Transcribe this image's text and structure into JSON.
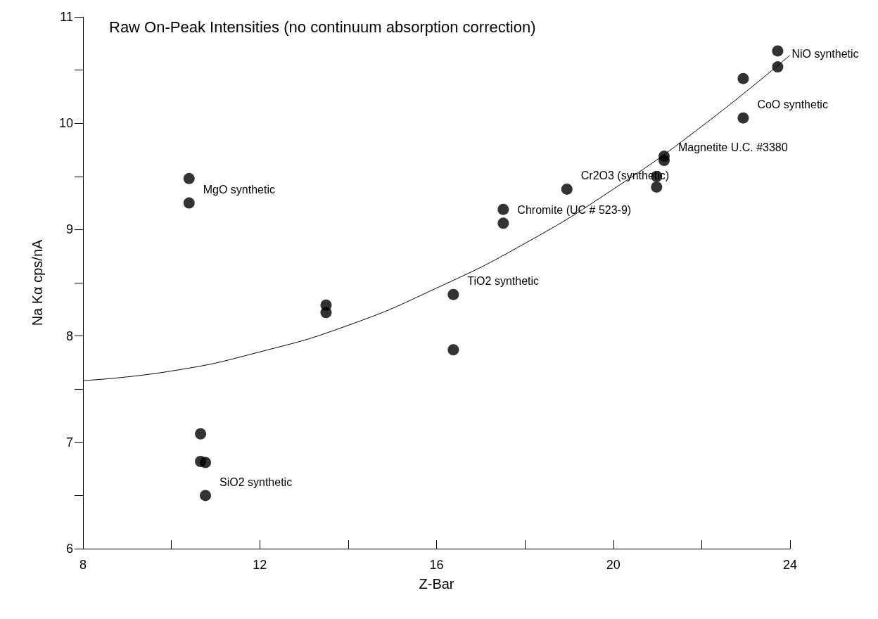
{
  "chart_data": {
    "type": "scatter",
    "title": "Raw On-Peak Intensities (no continuum absorption correction)",
    "xlabel": "Z-Bar",
    "ylabel": "Na Kα cps/nA",
    "marker": "circle",
    "xlim": [
      8,
      24
    ],
    "xticks": [
      8,
      {
        "value": 10,
        "label": null
      },
      12,
      {
        "value": 14,
        "label": null
      },
      16,
      {
        "value": 18,
        "label": null
      },
      20,
      {
        "value": 22,
        "label": null
      },
      24
    ],
    "ylim": [
      6,
      11
    ],
    "yticks": [
      6,
      {
        "value": 6.5,
        "label": null
      },
      7,
      {
        "value": 7.5,
        "label": null
      },
      8,
      {
        "value": 8.5,
        "label": null
      },
      9,
      {
        "value": 9.5,
        "label": null
      },
      10,
      {
        "value": 10.5,
        "label": null
      },
      11
    ],
    "series": [
      {
        "color": "#000000",
        "x": [
          10.4,
          10.4,
          10.66,
          10.66,
          10.77,
          10.77,
          13.5,
          13.5,
          16.38,
          16.38,
          17.51,
          17.51,
          18.95,
          20.98,
          20.98,
          21.15,
          21.15,
          22.94,
          22.94,
          23.72,
          23.72
        ],
        "values": [
          9.48,
          9.25,
          7.08,
          6.82,
          6.81,
          6.5,
          8.29,
          8.22,
          8.39,
          7.87,
          9.19,
          9.06,
          9.38,
          9.5,
          9.4,
          9.69,
          9.65,
          10.42,
          10.05,
          10.68,
          10.53
        ]
      },
      {
        "type": "line",
        "color": "#000000",
        "marker": "none",
        "x": [
          8,
          10,
          12,
          14,
          16,
          18,
          20,
          22,
          24
        ],
        "values": [
          7.58,
          7.67,
          7.85,
          8.1,
          8.45,
          8.87,
          9.38,
          9.97,
          10.64
        ]
      }
    ],
    "annotations": [
      {
        "text": "MgO synthetic",
        "x": 10.4,
        "y": 9.25
      },
      {
        "text": "SiO2 synthetic",
        "x": 10.77,
        "y": 6.5
      },
      {
        "text": "TiO2 synthetic",
        "x": 16.38,
        "y": 8.39
      },
      {
        "text": "Chromite (UC # 523-9)",
        "x": 17.51,
        "y": 9.06
      },
      {
        "text": "Cr2O3 (synthetic)",
        "x": 18.95,
        "y": 9.38
      },
      {
        "text": "Magnetite U.C. #3380",
        "x": 21.15,
        "y": 9.65
      },
      {
        "text": "CoO synthetic",
        "x": 22.94,
        "y": 10.05
      },
      {
        "text": "NiO synthetic",
        "x": 23.72,
        "y": 10.53
      }
    ]
  }
}
